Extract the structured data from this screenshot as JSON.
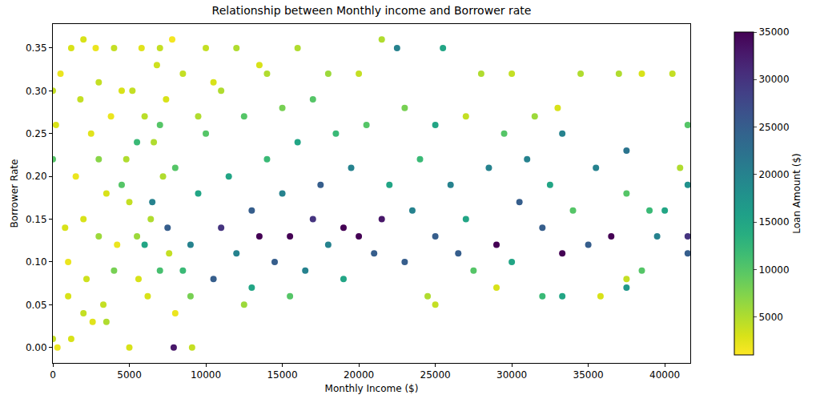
{
  "chart_data": {
    "type": "scatter",
    "title": "Relationship between Monthly income and Borrower rate",
    "x_label": "Monthly Income ($)",
    "y_label": "Borrower Rate",
    "marker": "circle",
    "xlim": [
      0,
      41667
    ],
    "xticks": [
      0,
      5000,
      10000,
      15000,
      20000,
      25000,
      30000,
      35000,
      40000
    ],
    "ylim": [
      -0.018,
      0.378
    ],
    "yticks": [
      {
        "value": 0,
        "label": "0.00"
      },
      0.05,
      {
        "value": 0.1,
        "label": "0.10"
      },
      0.15,
      {
        "value": 0.2,
        "label": "0.20"
      },
      0.25,
      {
        "value": 0.3,
        "label": "0.30"
      },
      0.35
    ],
    "colorbar": {
      "label": "Loan Amount ($)",
      "range": [
        1000,
        35000
      ],
      "ticks": [
        5000,
        10000,
        15000,
        20000,
        25000,
        30000,
        35000
      ]
    },
    "x": [
      500,
      1200,
      1800,
      2500,
      3000,
      3500,
      4000,
      4200,
      4800,
      5200,
      5600,
      6000,
      6400,
      6800,
      7200,
      7600,
      800,
      1500,
      2200,
      2800,
      3300,
      3800,
      4500,
      5000,
      5800,
      6200,
      6600,
      7000,
      7400,
      7800,
      0,
      300,
      1200,
      2000,
      2600,
      3500,
      5000,
      7900,
      9100,
      8000,
      0,
      0,
      200,
      1000,
      2000,
      3000,
      4000,
      4500,
      5500,
      6000,
      6500,
      7000,
      7500,
      8000,
      8500,
      9000,
      9500,
      10000,
      10000,
      10500,
      11000,
      11000,
      11500,
      12000,
      12000,
      12500,
      13000,
      13000,
      13500,
      14000,
      14000,
      14500,
      15000,
      15000,
      15500,
      16000,
      16000,
      16500,
      17000,
      17000,
      17500,
      18000,
      18000,
      18500,
      19000,
      19000,
      19500,
      20000,
      20000,
      20500,
      21000,
      21500,
      21500,
      22000,
      22500,
      23000,
      23000,
      23500,
      24000,
      24500,
      25000,
      25000,
      25000,
      25500,
      26000,
      26500,
      27000,
      27000,
      27500,
      28000,
      28500,
      29000,
      29000,
      29500,
      30000,
      30000,
      30500,
      31000,
      31500,
      32000,
      32000,
      32500,
      33000,
      33300,
      33300,
      33300,
      34000,
      34500,
      35000,
      35500,
      35800,
      36500,
      37000,
      37500,
      37500,
      37500,
      37500,
      38500,
      38500,
      39000,
      39500,
      40000,
      40500,
      41000,
      41500,
      41500,
      41500,
      41500,
      1000,
      9000,
      9500,
      10500,
      12500,
      13500,
      15500,
      8500,
      7000,
      5500,
      3000,
      2000
    ],
    "values": [
      0.32,
      0.35,
      0.29,
      0.25,
      0.31,
      0.18,
      0.35,
      0.12,
      0.22,
      0.3,
      0.08,
      0.27,
      0.15,
      0.33,
      0.2,
      0.11,
      0.14,
      0.2,
      0.08,
      0.35,
      0.05,
      0.27,
      0.3,
      0.17,
      0.35,
      0.06,
      0.24,
      0.35,
      0.29,
      0.36,
      0.01,
      0.0,
      0.01,
      0.04,
      0.03,
      0.03,
      0.0,
      0.0,
      0.0,
      0.04,
      0.22,
      0.3,
      0.26,
      0.1,
      0.36,
      0.13,
      0.09,
      0.19,
      0.24,
      0.12,
      0.17,
      0.09,
      0.14,
      0.21,
      0.32,
      0.12,
      0.18,
      0.35,
      0.25,
      0.08,
      0.14,
      0.3,
      0.2,
      0.11,
      0.35,
      0.27,
      0.16,
      0.07,
      0.13,
      0.22,
      0.32,
      0.1,
      0.18,
      0.28,
      0.13,
      0.24,
      0.35,
      0.09,
      0.15,
      0.29,
      0.19,
      0.12,
      0.32,
      0.25,
      0.14,
      0.08,
      0.21,
      0.32,
      0.13,
      0.26,
      0.11,
      0.36,
      0.15,
      0.19,
      0.35,
      0.1,
      0.28,
      0.16,
      0.22,
      0.06,
      0.13,
      0.26,
      0.05,
      0.35,
      0.19,
      0.11,
      0.27,
      0.15,
      0.09,
      0.32,
      0.21,
      0.12,
      0.07,
      0.25,
      0.1,
      0.32,
      0.17,
      0.22,
      0.27,
      0.14,
      0.06,
      0.19,
      0.28,
      0.11,
      0.25,
      0.06,
      0.16,
      0.32,
      0.12,
      0.21,
      0.06,
      0.13,
      0.32,
      0.18,
      0.23,
      0.08,
      0.07,
      0.32,
      0.09,
      0.16,
      0.13,
      0.16,
      0.32,
      0.21,
      0.26,
      0.13,
      0.11,
      0.19,
      0.06,
      0.06,
      0.27,
      0.31,
      0.05,
      0.33,
      0.06,
      0.09,
      0.26,
      0.13,
      0.22,
      0.15
    ],
    "loan_amount": [
      2000,
      3000,
      4000,
      2500,
      4000,
      3000,
      4000,
      2000,
      5000,
      4000,
      3000,
      4500,
      5000,
      3500,
      5000,
      4000,
      3000,
      2000,
      3500,
      2000,
      4000,
      2000,
      3000,
      4000,
      2500,
      3000,
      5000,
      4000,
      3000,
      1500,
      4000,
      2000,
      3000,
      4000,
      2500,
      5000,
      3000,
      33000,
      4000,
      2000,
      10000,
      4000,
      3000,
      2000,
      3000,
      6000,
      8000,
      10000,
      12000,
      15000,
      20000,
      11000,
      25000,
      10000,
      4000,
      20000,
      15000,
      4000,
      10000,
      25000,
      30000,
      5000,
      15000,
      20000,
      5000,
      10000,
      25000,
      15000,
      35000,
      12000,
      5000,
      25000,
      20000,
      8000,
      35000,
      15000,
      5000,
      20000,
      30000,
      10000,
      25000,
      20000,
      6000,
      12000,
      35000,
      15000,
      20000,
      4000,
      35000,
      10000,
      25000,
      5000,
      33000,
      15000,
      20000,
      25000,
      8000,
      20000,
      12000,
      5000,
      25000,
      15000,
      4000,
      15000,
      20000,
      25000,
      4000,
      15000,
      10000,
      5000,
      20000,
      35000,
      3000,
      10000,
      15000,
      4000,
      25000,
      20000,
      6000,
      25000,
      12000,
      15000,
      3000,
      35000,
      20000,
      15000,
      10000,
      5000,
      25000,
      20000,
      3000,
      35000,
      5000,
      10000,
      22000,
      4000,
      17000,
      3000,
      10000,
      12000,
      20000,
      15000,
      4000,
      5000,
      10000,
      30000,
      25000,
      18000,
      3000,
      8000,
      5000,
      3000,
      6000,
      3000,
      10000,
      12000,
      10000,
      6000,
      7000,
      3000
    ]
  }
}
